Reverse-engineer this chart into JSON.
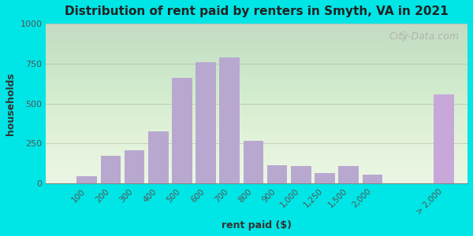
{
  "title": "Distribution of rent paid by renters in Smyth, VA in 2021",
  "xlabel": "rent paid ($)",
  "ylabel": "households",
  "bar_color": "#b8a8d0",
  "bar_color_last": "#c8a8d8",
  "background_outer": "#00e5e5",
  "background_inner_top": "#e8f5e0",
  "background_inner_bottom": "#d8f0e8",
  "categories": [
    "100",
    "200",
    "300",
    "400",
    "500",
    "600",
    "700",
    "800",
    "900",
    "1,000",
    "1,250",
    "1,500",
    "2,000",
    "> 2,000"
  ],
  "values": [
    45,
    175,
    210,
    325,
    660,
    760,
    790,
    265,
    115,
    110,
    65,
    110,
    55,
    555
  ],
  "ylim": [
    0,
    1000
  ],
  "yticks": [
    0,
    250,
    500,
    750,
    1000
  ],
  "watermark": "City-Data.com"
}
